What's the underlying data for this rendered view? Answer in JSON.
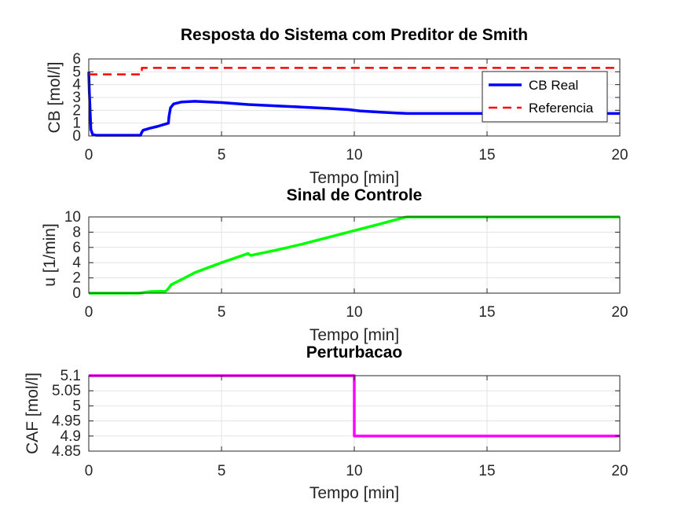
{
  "chart_data": [
    {
      "type": "line",
      "title": "Resposta do Sistema com Preditor de Smith",
      "xlabel": "Tempo [min]",
      "ylabel": "CB [mol/l]",
      "xlim": [
        0,
        20
      ],
      "ylim": [
        0,
        6
      ],
      "xticks": [
        "0",
        "5",
        "10",
        "15",
        "20"
      ],
      "yticks": [
        "0",
        "1",
        "2",
        "3",
        "4",
        "5",
        "6"
      ],
      "grid": true,
      "legend": "top-right",
      "series": [
        {
          "name": "CB Real",
          "color": "#0000ff",
          "style": "solid",
          "x": [
            0,
            0.02,
            0.08,
            0.15,
            0.3,
            1.0,
            1.95,
            2.0,
            2.05,
            2.3,
            2.6,
            3.0,
            3.02,
            3.08,
            3.2,
            3.5,
            4.0,
            5.0,
            6.0,
            7.0,
            8.0,
            9.0,
            9.8,
            10.2,
            11.0,
            12.0,
            13.0,
            15.0,
            17.0,
            20.0
          ],
          "y": [
            5.0,
            3.5,
            0.5,
            0.1,
            0.05,
            0.05,
            0.05,
            0.3,
            0.45,
            0.6,
            0.75,
            1.0,
            1.5,
            2.2,
            2.5,
            2.65,
            2.7,
            2.6,
            2.45,
            2.35,
            2.25,
            2.15,
            2.05,
            1.95,
            1.85,
            1.75,
            1.75,
            1.75,
            1.75,
            1.75
          ]
        },
        {
          "name": "Referencia",
          "color": "#ff0000",
          "style": "dashed",
          "x": [
            0,
            2.0,
            2.0,
            20.0
          ],
          "y": [
            4.8,
            4.8,
            5.3,
            5.3
          ]
        }
      ]
    },
    {
      "type": "line",
      "title": "Sinal de Controle",
      "xlabel": "Tempo [min]",
      "ylabel": "u [1/min]",
      "xlim": [
        0,
        20
      ],
      "ylim": [
        0,
        10
      ],
      "xticks": [
        "0",
        "5",
        "10",
        "15",
        "20"
      ],
      "yticks": [
        "0",
        "2",
        "4",
        "6",
        "8",
        "10"
      ],
      "grid": true,
      "series": [
        {
          "color": "#00ff00",
          "x": [
            0,
            1.9,
            2.0,
            2.3,
            2.9,
            3.0,
            3.1,
            3.5,
            4.0,
            5.0,
            5.5,
            6.0,
            6.1,
            6.3,
            7.0,
            8.0,
            9.0,
            10.0,
            11.0,
            11.9,
            12.0,
            20.0
          ],
          "y": [
            0,
            0,
            0.05,
            0.2,
            0.25,
            0.6,
            1.1,
            1.8,
            2.7,
            4.0,
            4.6,
            5.2,
            4.95,
            5.1,
            5.6,
            6.4,
            7.3,
            8.2,
            9.1,
            9.95,
            10.0,
            10.0
          ]
        }
      ]
    },
    {
      "type": "line",
      "title": "Perturbacao",
      "xlabel": "Tempo [min]",
      "ylabel": "CAF [mol/l]",
      "xlim": [
        0,
        20
      ],
      "ylim": [
        4.85,
        5.1
      ],
      "xticks": [
        "0",
        "5",
        "10",
        "15",
        "20"
      ],
      "yticks": [
        "4.85",
        "4.9",
        "4.95",
        "5",
        "5.05",
        "5.1"
      ],
      "grid": true,
      "series": [
        {
          "color": "#ff00ff",
          "x": [
            0,
            10.0,
            10.0,
            20.0
          ],
          "y": [
            5.1,
            5.1,
            4.9,
            4.9
          ]
        }
      ]
    }
  ]
}
